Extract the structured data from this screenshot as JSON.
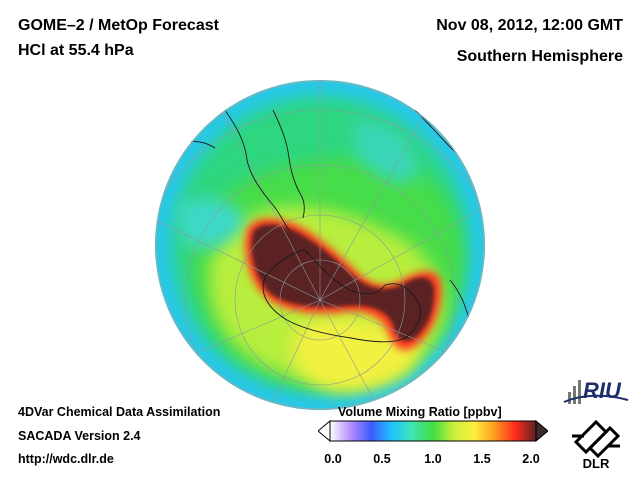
{
  "header": {
    "title_line1": "GOME–2 / MetOp Forecast",
    "title_line2": "HCl at 55.4 hPa",
    "date": "Nov 08, 2012, 12:00 GMT",
    "region": "Southern Hemisphere"
  },
  "footer": {
    "line1": "4DVar Chemical Data Assimilation",
    "line2": "SACADA Version 2.4",
    "url": "http://wdc.dlr.de"
  },
  "colorbar": {
    "title": "Volume Mixing Ratio [ppbv]",
    "ticks": [
      "0.0",
      "0.5",
      "1.0",
      "1.5",
      "2.0"
    ],
    "range": [
      0.0,
      2.0
    ],
    "colors": [
      "#ffffff",
      "#b58cff",
      "#3c5cff",
      "#1fc4ff",
      "#3ee6b0",
      "#42dc43",
      "#c8f03a",
      "#fff03c",
      "#ff9a1e",
      "#ff2a1e",
      "#5a2222"
    ]
  },
  "logos": {
    "riu": "RIU",
    "dlr": "DLR"
  }
}
